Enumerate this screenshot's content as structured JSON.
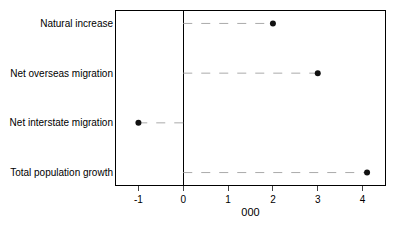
{
  "chart_data": {
    "type": "dot",
    "orientation": "horizontal",
    "categories": [
      "Natural increase",
      "Net overseas migration",
      "Net interstate migration",
      "Total population growth"
    ],
    "values": [
      2.0,
      3.0,
      -1.0,
      4.1
    ],
    "color": "#111111",
    "line_style": "dashed",
    "xlabel": "000",
    "xlim": [
      -1.5,
      4.5
    ],
    "xticks": [
      -1,
      0,
      1,
      2,
      3,
      4
    ],
    "grid": false
  }
}
